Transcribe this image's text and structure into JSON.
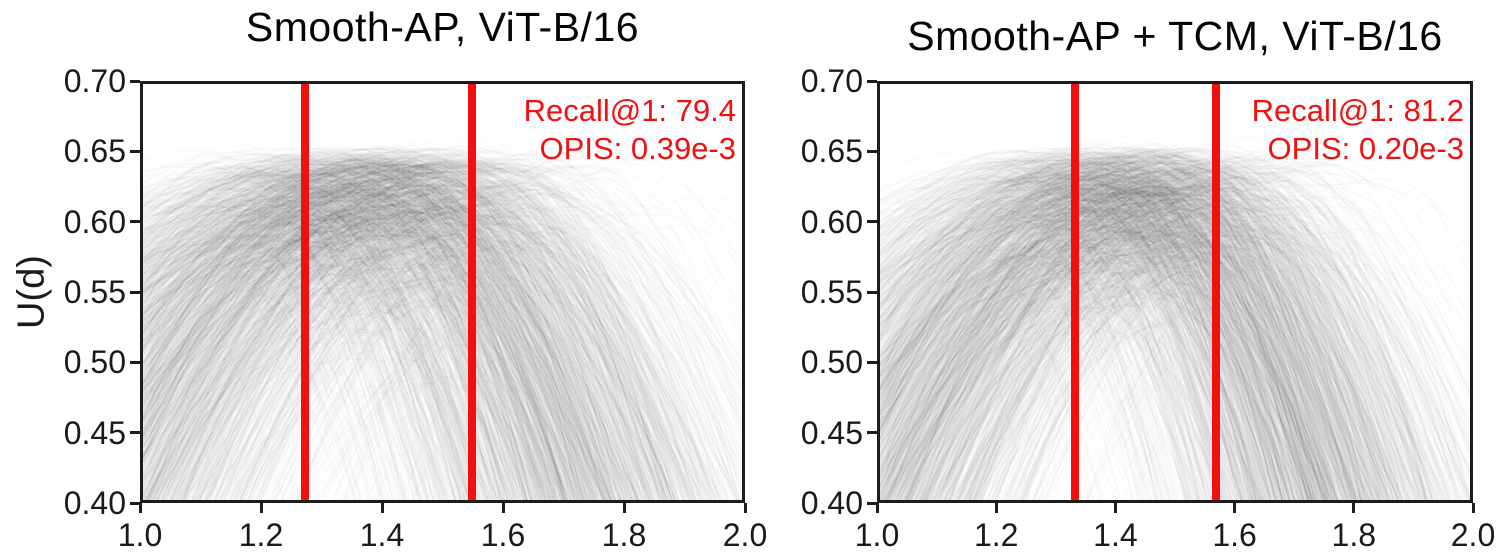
{
  "colors": {
    "background": "#ffffff",
    "accent_red": "#f2100e",
    "curve_black": "#000000",
    "axis": "#1c1c1c",
    "text": "#050505"
  },
  "chart_data": [
    {
      "type": "line",
      "title": "Smooth-AP, ViT-B/16",
      "xlabel": "",
      "ylabel": "U(d)",
      "xlim": [
        1.0,
        2.0
      ],
      "ylim": [
        0.4,
        0.7
      ],
      "xticks": [
        1.0,
        1.2,
        1.4,
        1.6,
        1.8,
        2.0
      ],
      "yticks": [
        0.7,
        0.65,
        0.6,
        0.55,
        0.5,
        0.45,
        0.4
      ],
      "grid": false,
      "legend": null,
      "vlines": {
        "x": [
          1.27,
          1.55
        ],
        "color": "#f2100e"
      },
      "annotations": [
        "Recall@1: 79.4",
        "OPIS: 0.39e-3"
      ],
      "series_description": "Dense ensemble of semi-transparent black utility curves U(d); peaks cluster near U=0.65 between the two red vertical lines at d=1.27 and d=1.55, with long shallow left tails reaching d=1.0 and steep right tails falling off beyond d=1.6",
      "curve_ensemble": {
        "n_curves": 1550,
        "seed": 11,
        "peak_x_mean": 1.41,
        "peak_x_std": 0.145,
        "peak_y_max": 0.654,
        "peak_y_sigma": 0.045,
        "curv_min": 0.35,
        "curv_max": 1.5,
        "right_steepness": 1.9,
        "alpha": 0.05
      }
    },
    {
      "type": "line",
      "title": "Smooth-AP + TCM, ViT-B/16",
      "xlabel": "",
      "ylabel": "",
      "xlim": [
        1.0,
        2.0
      ],
      "ylim": [
        0.4,
        0.7
      ],
      "xticks": [
        1.0,
        1.2,
        1.4,
        1.6,
        1.8,
        2.0
      ],
      "yticks": [
        0.7,
        0.65,
        0.6,
        0.55,
        0.5,
        0.45,
        0.4
      ],
      "grid": false,
      "legend": null,
      "vlines": {
        "x": [
          1.33,
          1.57
        ],
        "color": "#f2100e"
      },
      "annotations": [
        "Recall@1: 81.2",
        "OPIS: 0.20e-3"
      ],
      "series_description": "Dense ensemble of semi-transparent black utility curves U(d); tighter peak cluster near U=0.65 centered between the red vertical lines at d=1.33 and d=1.57, steep fall-off after d=1.6",
      "curve_ensemble": {
        "n_curves": 1550,
        "seed": 23,
        "peak_x_mean": 1.45,
        "peak_x_std": 0.125,
        "peak_y_max": 0.654,
        "peak_y_sigma": 0.045,
        "curv_min": 0.4,
        "curv_max": 1.6,
        "right_steepness": 2.0,
        "alpha": 0.05
      }
    }
  ]
}
